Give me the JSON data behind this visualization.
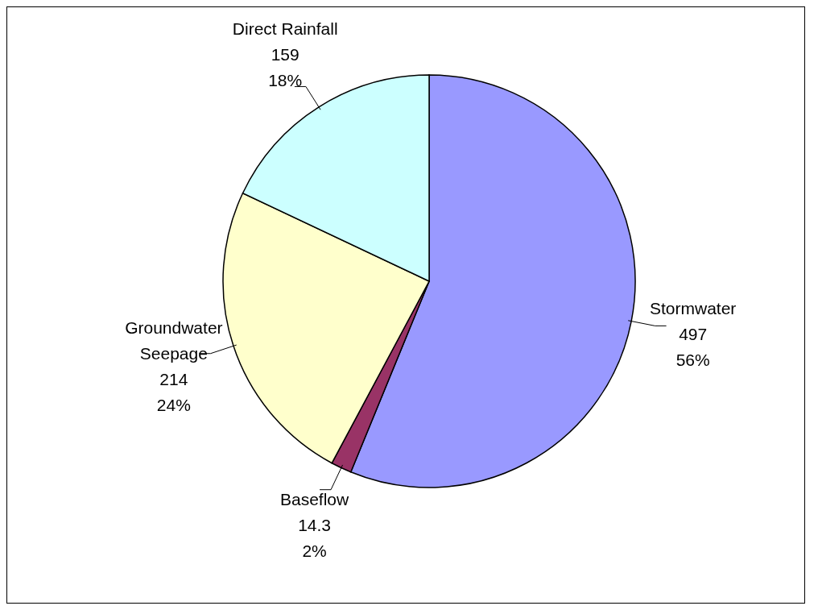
{
  "chart_data": {
    "type": "pie",
    "categories": [
      "Stormwater",
      "Baseflow",
      "Groundwater Seepage",
      "Direct Rainfall"
    ],
    "values": [
      497,
      14.3,
      214,
      159
    ],
    "colors": [
      "#9999ff",
      "#993366",
      "#ffffcc",
      "#ccffff"
    ],
    "value_labels": [
      "497\n56%",
      "14.3\n2%",
      "214\n24%",
      "159\n18%"
    ],
    "legend": false
  }
}
